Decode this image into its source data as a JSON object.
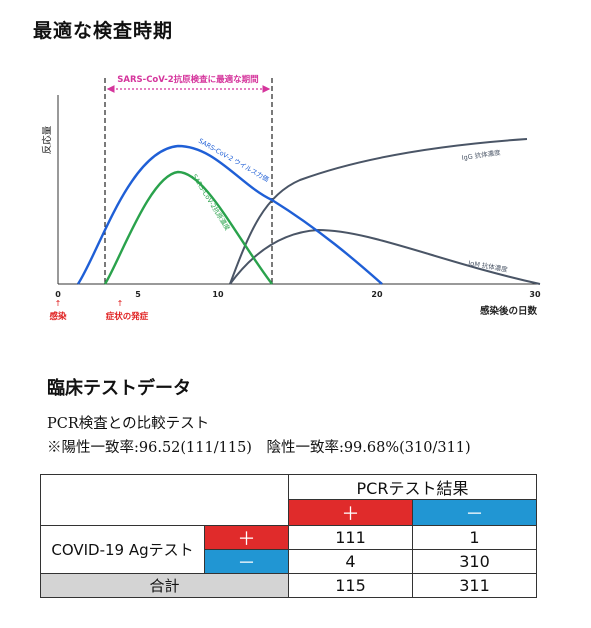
{
  "heading": "最適な検査時期",
  "chart": {
    "window_label": "SARS-CoV-2抗原検査に最適な期間",
    "y_axis_label": "反応量",
    "x_axis_label": "感染後の日数",
    "x_ticks": [
      "0",
      "5",
      "10",
      "20",
      "30"
    ],
    "event_labels": [
      "感染",
      "症状の発症"
    ],
    "curve_labels": {
      "virus": "SARS-CoV-2 ウイルス力価",
      "antigen": "SARS-CoV-2抗原濃度",
      "igg": "IgG 抗体濃度",
      "igm": "IgM 抗体濃度"
    },
    "colors": {
      "virus": "#1f5fd6",
      "antigen": "#2aa24c",
      "antibody": "#4a5566",
      "window": "#d5359c",
      "event": "#e02020"
    }
  },
  "section2": {
    "heading": "臨床テストデータ",
    "subtitle": "PCR検査との比較テスト",
    "rates": "※陽性一致率:96.52(111/115)　陰性一致率:99.68%(310/311)"
  },
  "table": {
    "pcr_header": "PCRテスト結果",
    "pcr_plus": "＋",
    "pcr_minus": "－",
    "row_label": "COVID-19 Agテスト",
    "ag_plus": "＋",
    "ag_minus": "－",
    "cells": [
      "111",
      "1",
      "4",
      "310"
    ],
    "total_label": "合計",
    "totals": [
      "115",
      "311"
    ],
    "colors": {
      "red": "#e02b2b",
      "blue": "#2196d3",
      "gray": "#d4d4d4"
    }
  }
}
